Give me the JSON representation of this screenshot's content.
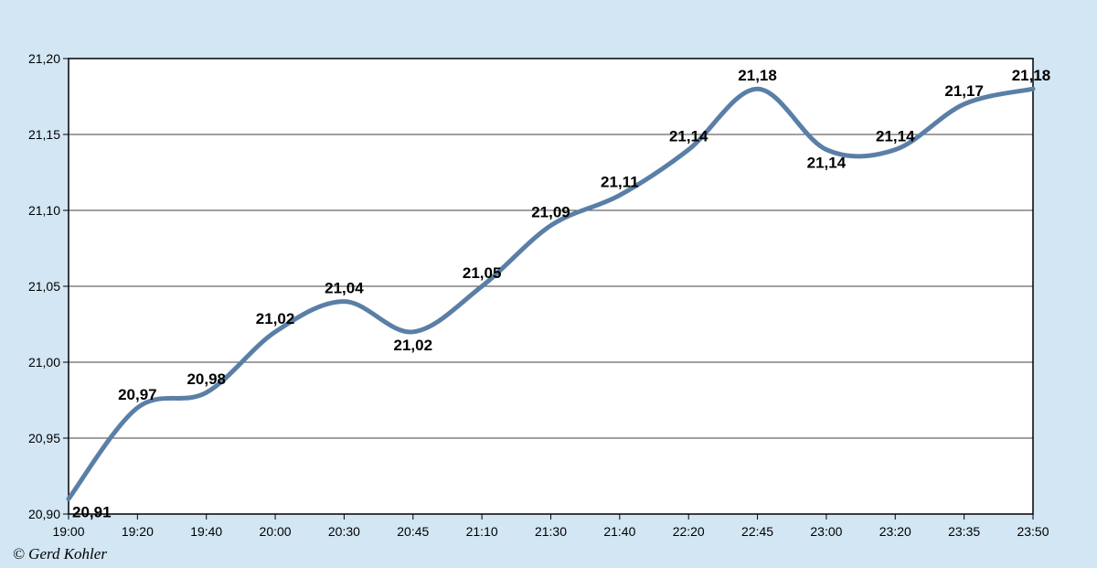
{
  "chart_data": {
    "type": "line",
    "title": "",
    "xlabel": "",
    "ylabel": "",
    "categories": [
      "19:00",
      "19:20",
      "19:40",
      "20:00",
      "20:30",
      "20:45",
      "21:10",
      "21:30",
      "21:40",
      "22:20",
      "22:45",
      "23:00",
      "23:20",
      "23:35",
      "23:50"
    ],
    "series": [
      {
        "values": [
          20.91,
          20.97,
          20.98,
          21.02,
          21.04,
          21.02,
          21.05,
          21.09,
          21.11,
          21.14,
          21.18,
          21.14,
          21.14,
          21.17,
          21.18
        ]
      }
    ],
    "data_labels": [
      "20,91",
      "20,97",
      "20,98",
      "21,02",
      "21,04",
      "21,02",
      "21,05",
      "21,09",
      "21,11",
      "21,14",
      "21,18",
      "21,14",
      "21,14",
      "21,17",
      "21,18"
    ],
    "ylim": [
      20.9,
      21.2
    ],
    "yticks": [
      20.9,
      20.95,
      21.0,
      21.05,
      21.1,
      21.15,
      21.2
    ],
    "ytick_labels": [
      "20,90",
      "20,95",
      "21,00",
      "21,05",
      "21,10",
      "21,15",
      "21,20"
    ],
    "grid": "horizontal",
    "line_color": "#5a7fa6",
    "plot_background": "#ffffff",
    "page_background": "#d2e6f4"
  },
  "footer": {
    "copyright": "© Gerd Kohler"
  }
}
